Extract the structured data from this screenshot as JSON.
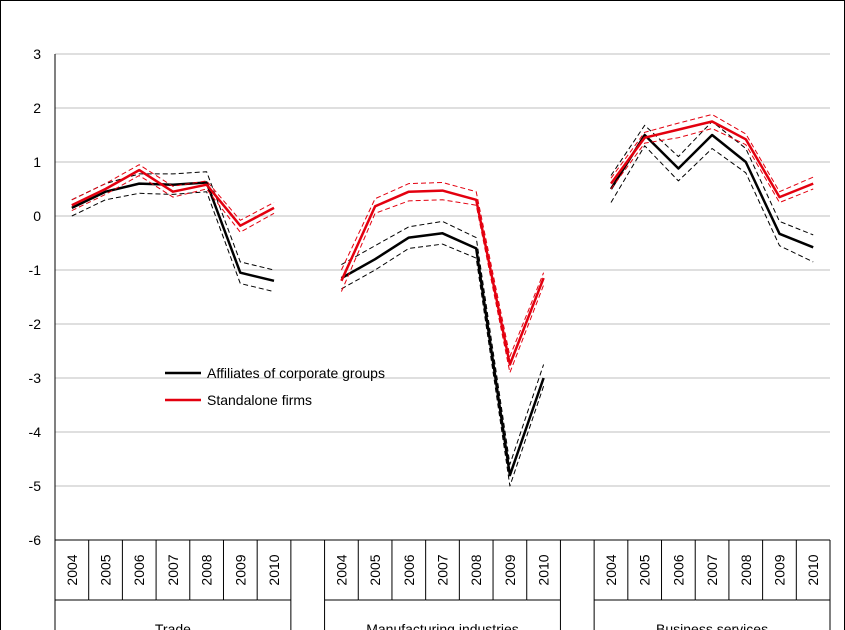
{
  "chart_data": {
    "type": "line",
    "categories": [
      "2004",
      "2005",
      "2006",
      "2007",
      "2008",
      "2009",
      "2010",
      null,
      "2004",
      "2005",
      "2006",
      "2007",
      "2008",
      "2009",
      "2010",
      null,
      "2004",
      "2005",
      "2006",
      "2007",
      "2008",
      "2009",
      "2010"
    ],
    "groups": [
      "Trade",
      "Manufacturing industries",
      "Business services"
    ],
    "series": [
      {
        "name": "Affiliates of corporate groups",
        "color": "#000000",
        "values": [
          0.15,
          0.45,
          0.6,
          0.58,
          0.62,
          -1.05,
          -1.2,
          null,
          -1.15,
          -0.8,
          -0.4,
          -0.32,
          -0.6,
          -4.8,
          -3.0,
          null,
          0.5,
          1.5,
          0.88,
          1.5,
          1.0,
          -0.33,
          -0.58
        ],
        "upper": [
          0.3,
          0.6,
          0.78,
          0.78,
          0.82,
          -0.85,
          -1.0,
          null,
          -0.9,
          -0.55,
          -0.2,
          -0.1,
          -0.4,
          -4.6,
          -2.75,
          null,
          0.75,
          1.68,
          1.1,
          1.75,
          1.25,
          -0.1,
          -0.35
        ],
        "lower": [
          0,
          0.3,
          0.42,
          0.4,
          0.45,
          -1.25,
          -1.4,
          null,
          -1.35,
          -1.0,
          -0.6,
          -0.52,
          -0.78,
          -5.0,
          -3.15,
          null,
          0.25,
          1.3,
          0.65,
          1.25,
          0.8,
          -0.55,
          -0.85
        ]
      },
      {
        "name": "Standalone firms",
        "color": "#e3000f",
        "values": [
          0.2,
          0.5,
          0.85,
          0.45,
          0.58,
          -0.18,
          0.15,
          null,
          -1.2,
          0.18,
          0.45,
          0.47,
          0.3,
          -2.75,
          -1.15,
          null,
          0.6,
          1.45,
          1.6,
          1.75,
          1.42,
          0.35,
          0.6
        ],
        "upper": [
          0.3,
          0.6,
          0.95,
          0.55,
          0.65,
          -0.08,
          0.25,
          null,
          -1.0,
          0.32,
          0.6,
          0.62,
          0.45,
          -2.6,
          -1.05,
          null,
          0.7,
          1.55,
          1.72,
          1.88,
          1.52,
          0.45,
          0.72
        ],
        "lower": [
          0.1,
          0.4,
          0.75,
          0.35,
          0.5,
          -0.3,
          0.05,
          null,
          -1.4,
          0.05,
          0.28,
          0.3,
          0.2,
          -2.9,
          -1.28,
          null,
          0.5,
          1.35,
          1.45,
          1.62,
          1.32,
          0.25,
          0.5
        ]
      }
    ],
    "ylim": [
      -6,
      3
    ],
    "yticks": [
      -6,
      -5,
      -4,
      -3,
      -2,
      -1,
      0,
      1,
      2,
      3
    ],
    "grid": true,
    "legend": "left"
  }
}
